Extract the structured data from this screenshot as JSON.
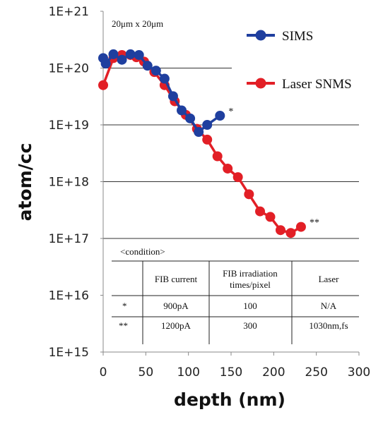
{
  "chart_data": {
    "type": "line",
    "xlabel": "depth (nm)",
    "ylabel": "atom/cc",
    "xlim": [
      0,
      300
    ],
    "ylim": [
      1000000000000000.0,
      1e+21
    ],
    "yscale": "log",
    "xticks": [
      "0",
      "50",
      "100",
      "150",
      "200",
      "250",
      "300"
    ],
    "yticks": [
      "1E+15",
      "1E+16",
      "1E+17",
      "1E+18",
      "1E+19",
      "1E+20",
      "1E+21"
    ],
    "grid": "horizontal",
    "legend_position": "top-right",
    "area_label": "20μm x 20μm",
    "series": [
      {
        "name": "SIMS",
        "color": "#1f3f9f",
        "marker_note": "*",
        "x": [
          0,
          3,
          12,
          22,
          32,
          42,
          52,
          62,
          72,
          82,
          92,
          102,
          112,
          122,
          137
        ],
        "y": [
          1.5e+20,
          1.2e+20,
          1.75e+20,
          1.4e+20,
          1.75e+20,
          1.7e+20,
          1.1e+20,
          9e+19,
          6.5e+19,
          3.2e+19,
          1.8e+19,
          1.3e+19,
          7.5e+18,
          1e+19,
          1.45e+19
        ]
      },
      {
        "name": "Laser SNMS",
        "color": "#e21f26",
        "marker_note": "**",
        "x": [
          0,
          12,
          22,
          32,
          39,
          48,
          60,
          72,
          84,
          97,
          110,
          122,
          134,
          146,
          158,
          171,
          184,
          196,
          208,
          220,
          232
        ],
        "y": [
          5e+19,
          1.5e+20,
          1.7e+20,
          1.7e+20,
          1.55e+20,
          1.3e+20,
          8.5e+19,
          5e+19,
          2.6e+19,
          1.5e+19,
          8.5e+18,
          5.5e+18,
          2.8e+18,
          1.7e+18,
          1.2e+18,
          6e+17,
          3e+17,
          2.4e+17,
          1.4e+17,
          1.25e+17,
          1.6e+17
        ]
      }
    ]
  },
  "table": {
    "caption": "<condition>",
    "headers": [
      "FIB current",
      "FIB irradiation times/pixel",
      "Laser"
    ],
    "header_lines": [
      [
        "FIB current"
      ],
      [
        "FIB irradiation",
        "times/pixel"
      ],
      [
        "Laser"
      ]
    ],
    "rows": [
      {
        "mark": "*",
        "mark_color": "#2ab0c0",
        "cells": [
          "900pA",
          "100",
          "N/A"
        ]
      },
      {
        "mark": "**",
        "mark_color": "#9b1b2a",
        "cells": [
          "1200pA",
          "300",
          "1030nm,fs"
        ]
      }
    ]
  }
}
